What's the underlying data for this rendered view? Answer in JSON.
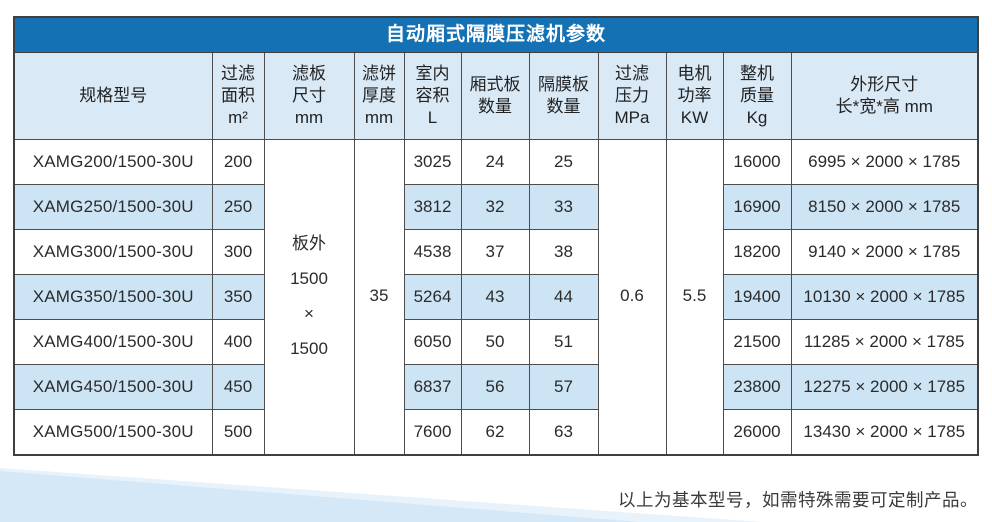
{
  "title_bar": {
    "text": "自动厢式隔膜压滤机参数"
  },
  "table": {
    "columns": [
      {
        "key": "model",
        "label_lines": [
          "规格型号"
        ]
      },
      {
        "key": "filter-area",
        "label_lines": [
          "过滤",
          "面积",
          "m²"
        ]
      },
      {
        "key": "plate-size",
        "label_lines": [
          "滤板",
          "尺寸",
          "mm"
        ]
      },
      {
        "key": "cake-thickness",
        "label_lines": [
          "滤饼",
          "厚度",
          "mm"
        ]
      },
      {
        "key": "chamber-volume",
        "label_lines": [
          "室内",
          "容积",
          "L"
        ]
      },
      {
        "key": "chamber-plate-count",
        "label_lines": [
          "厢式板",
          "数量"
        ]
      },
      {
        "key": "diaphragm-plate-count",
        "label_lines": [
          "隔膜板",
          "数量"
        ]
      },
      {
        "key": "filter-pressure",
        "label_lines": [
          "过滤",
          "压力",
          "MPa"
        ]
      },
      {
        "key": "motor-power",
        "label_lines": [
          "电机",
          "功率",
          "KW"
        ]
      },
      {
        "key": "machine-weight",
        "label_lines": [
          "整机",
          "质量",
          "Kg"
        ]
      },
      {
        "key": "dimensions",
        "label_lines": [
          "外形尺寸",
          "长*宽*高 mm"
        ]
      }
    ],
    "merged": {
      "plate_size_lines": [
        "板外",
        "1500",
        "×",
        "1500"
      ],
      "cake_thickness": "35",
      "filter_pressure": "0.6",
      "motor_power": "5.5"
    },
    "rows": [
      {
        "model": "XAMG200/1500-30U",
        "area": "200",
        "volume": "3025",
        "chamber_plates": "24",
        "diaphragm_plates": "25",
        "weight": "16000",
        "dimensions": "6995 × 2000 × 1785"
      },
      {
        "model": "XAMG250/1500-30U",
        "area": "250",
        "volume": "3812",
        "chamber_plates": "32",
        "diaphragm_plates": "33",
        "weight": "16900",
        "dimensions": "8150 × 2000 × 1785"
      },
      {
        "model": "XAMG300/1500-30U",
        "area": "300",
        "volume": "4538",
        "chamber_plates": "37",
        "diaphragm_plates": "38",
        "weight": "18200",
        "dimensions": "9140 × 2000 × 1785"
      },
      {
        "model": "XAMG350/1500-30U",
        "area": "350",
        "volume": "5264",
        "chamber_plates": "43",
        "diaphragm_plates": "44",
        "weight": "19400",
        "dimensions": "10130 × 2000 × 1785"
      },
      {
        "model": "XAMG400/1500-30U",
        "area": "400",
        "volume": "6050",
        "chamber_plates": "50",
        "diaphragm_plates": "51",
        "weight": "21500",
        "dimensions": "11285 × 2000 × 1785"
      },
      {
        "model": "XAMG450/1500-30U",
        "area": "450",
        "volume": "6837",
        "chamber_plates": "56",
        "diaphragm_plates": "57",
        "weight": "23800",
        "dimensions": "12275 × 2000 × 1785"
      },
      {
        "model": "XAMG500/1500-30U",
        "area": "500",
        "volume": "7600",
        "chamber_plates": "62",
        "diaphragm_plates": "63",
        "weight": "26000",
        "dimensions": "13430 × 2000 × 1785"
      }
    ]
  },
  "footer": {
    "note": "以上为基本型号，如需特殊需要可定制产品。"
  },
  "colors": {
    "title_bg": "#1371b4",
    "header_bg": "#d9e9f6",
    "stripe_bg": "#cde4f5",
    "border": "#4d4d4d",
    "wedge_main": "#d5e8f7",
    "wedge_light": "#e8f2fb"
  }
}
